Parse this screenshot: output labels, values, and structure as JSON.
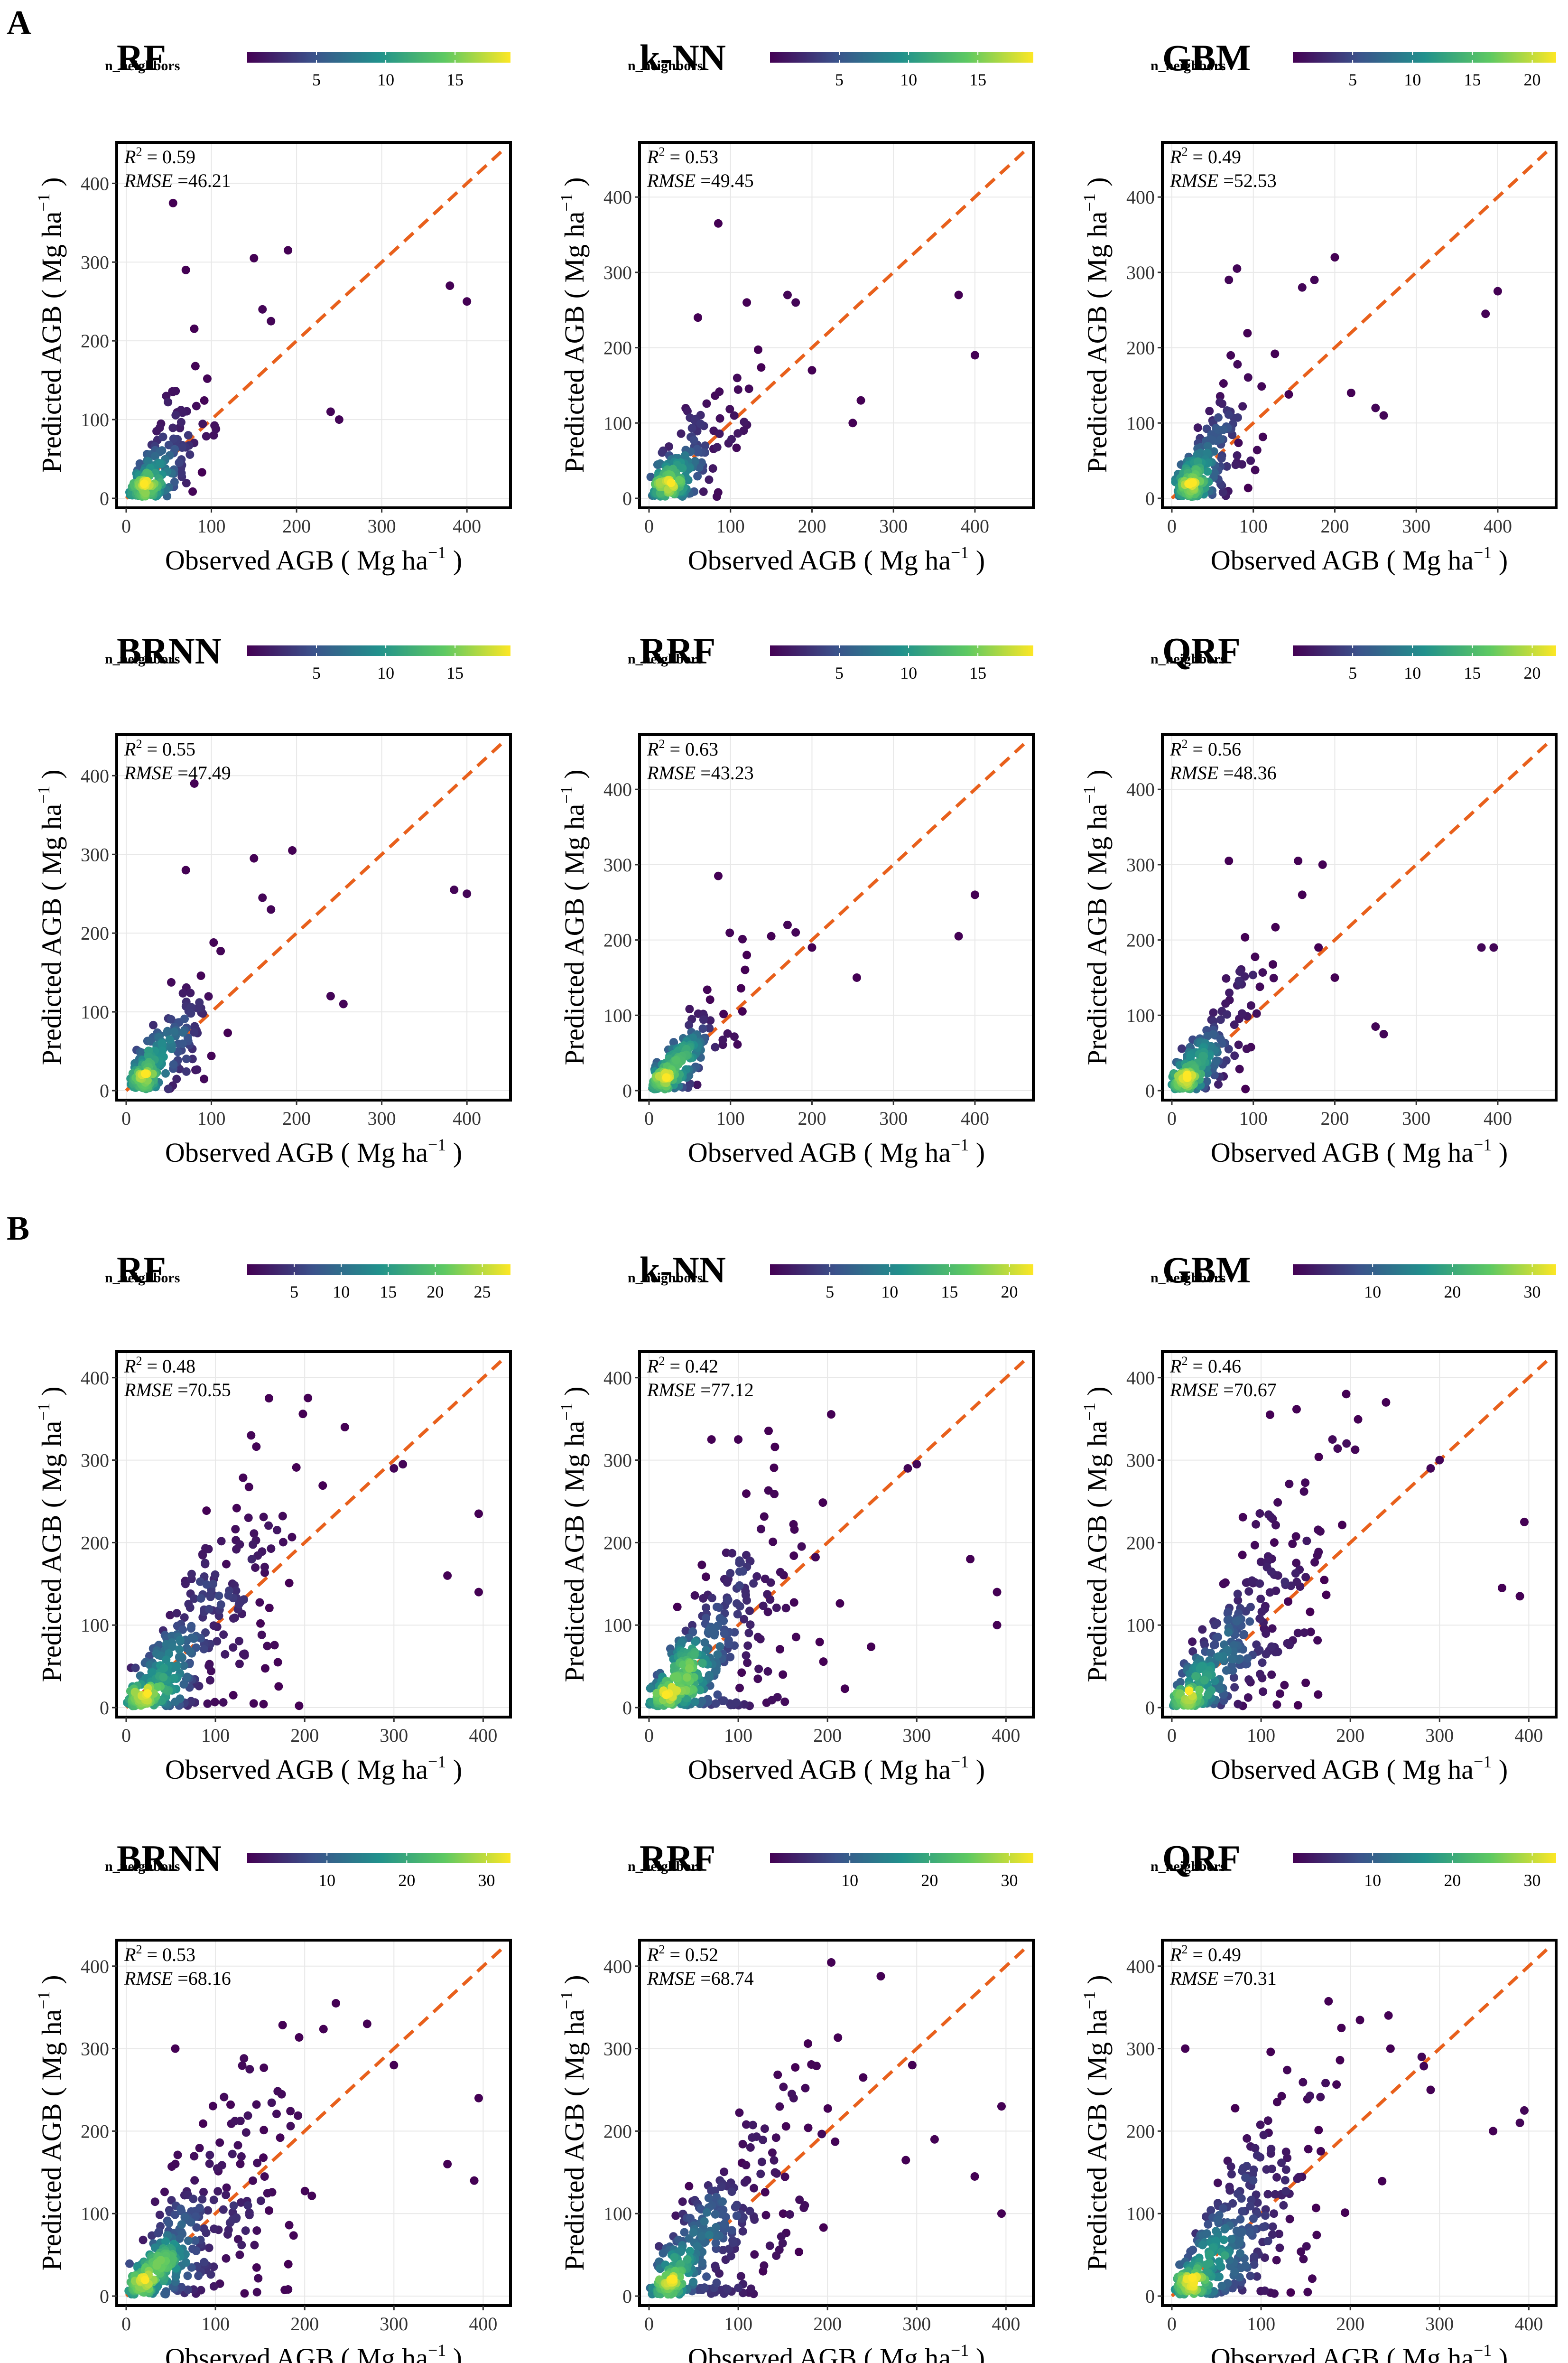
{
  "figure": {
    "section_labels": [
      "A",
      "B"
    ],
    "x_axis_label": "Observed AGB ( Mg ha",
    "y_axis_label": "Predicted AGB ( Mg ha",
    "unit_superscript": "−1",
    "unit_close": ")",
    "legend_title": "n_neighbors",
    "r2_symbol": "R",
    "r2_exponent": "2",
    "r2_prefix": " = ",
    "rmse_symbol": "RMSE",
    "rmse_prefix": " =",
    "line_color": "#e8601c",
    "colormap": [
      "#440154",
      "#3b528b",
      "#21918c",
      "#5ec962",
      "#fde725"
    ]
  },
  "chart_data": [
    {
      "section": "A",
      "type": "scatter",
      "title": "RF",
      "r2": "0.59",
      "rmse": "46.21",
      "xlim": [
        0,
        440
      ],
      "ylim": [
        0,
        440
      ],
      "xticks": [
        0,
        100,
        200,
        300,
        400
      ],
      "yticks": [
        0,
        100,
        200,
        300,
        400
      ],
      "legend_ticks": [
        5,
        10,
        15
      ],
      "legend_max": 19,
      "n_points": 180,
      "spread": 0.35,
      "seed": 11,
      "outliers": [
        [
          55,
          375
        ],
        [
          70,
          290
        ],
        [
          150,
          305
        ],
        [
          160,
          240
        ],
        [
          170,
          225
        ],
        [
          190,
          315
        ],
        [
          380,
          270
        ],
        [
          400,
          250
        ],
        [
          240,
          110
        ],
        [
          250,
          100
        ]
      ]
    },
    {
      "section": "A",
      "type": "scatter",
      "title": "k-NN",
      "r2": "0.53",
      "rmse": "49.45",
      "xlim": [
        0,
        460
      ],
      "ylim": [
        0,
        460
      ],
      "xticks": [
        0,
        100,
        200,
        300,
        400
      ],
      "yticks": [
        0,
        100,
        200,
        300,
        400
      ],
      "legend_ticks": [
        5,
        10,
        15
      ],
      "legend_max": 19,
      "n_points": 180,
      "spread": 0.38,
      "seed": 23,
      "outliers": [
        [
          85,
          365
        ],
        [
          60,
          240
        ],
        [
          120,
          260
        ],
        [
          170,
          270
        ],
        [
          180,
          260
        ],
        [
          200,
          170
        ],
        [
          380,
          270
        ],
        [
          400,
          190
        ],
        [
          250,
          100
        ],
        [
          260,
          130
        ]
      ]
    },
    {
      "section": "A",
      "type": "scatter",
      "title": "GBM",
      "r2": "0.49",
      "rmse": "52.53",
      "xlim": [
        0,
        460
      ],
      "ylim": [
        0,
        460
      ],
      "xticks": [
        0,
        100,
        200,
        300,
        400
      ],
      "yticks": [
        0,
        100,
        200,
        300,
        400
      ],
      "legend_ticks": [
        5,
        10,
        15,
        20
      ],
      "legend_max": 22,
      "n_points": 180,
      "spread": 0.4,
      "seed": 37,
      "outliers": [
        [
          70,
          290
        ],
        [
          80,
          305
        ],
        [
          160,
          280
        ],
        [
          175,
          290
        ],
        [
          200,
          320
        ],
        [
          385,
          245
        ],
        [
          400,
          275
        ],
        [
          220,
          140
        ],
        [
          250,
          120
        ],
        [
          260,
          110
        ]
      ]
    },
    {
      "section": "A",
      "type": "scatter",
      "title": "BRNN",
      "r2": "0.55",
      "rmse": "47.49",
      "xlim": [
        0,
        440
      ],
      "ylim": [
        0,
        440
      ],
      "xticks": [
        0,
        100,
        200,
        300,
        400
      ],
      "yticks": [
        0,
        100,
        200,
        300,
        400
      ],
      "legend_ticks": [
        5,
        10,
        15
      ],
      "legend_max": 19,
      "n_points": 180,
      "spread": 0.36,
      "seed": 41,
      "outliers": [
        [
          70,
          280
        ],
        [
          150,
          295
        ],
        [
          160,
          245
        ],
        [
          170,
          230
        ],
        [
          195,
          305
        ],
        [
          385,
          255
        ],
        [
          400,
          250
        ],
        [
          240,
          120
        ],
        [
          255,
          110
        ],
        [
          80,
          390
        ]
      ]
    },
    {
      "section": "A",
      "type": "scatter",
      "title": "RRF",
      "r2": "0.63",
      "rmse": "43.23",
      "xlim": [
        0,
        460
      ],
      "ylim": [
        0,
        460
      ],
      "xticks": [
        0,
        100,
        200,
        300,
        400
      ],
      "yticks": [
        0,
        100,
        200,
        300,
        400
      ],
      "legend_ticks": [
        5,
        10,
        15
      ],
      "legend_max": 19,
      "n_points": 180,
      "spread": 0.3,
      "seed": 53,
      "outliers": [
        [
          85,
          285
        ],
        [
          150,
          205
        ],
        [
          170,
          220
        ],
        [
          200,
          190
        ],
        [
          255,
          150
        ],
        [
          380,
          205
        ],
        [
          400,
          260
        ],
        [
          120,
          180
        ],
        [
          180,
          210
        ]
      ]
    },
    {
      "section": "A",
      "type": "scatter",
      "title": "QRF",
      "r2": "0.56",
      "rmse": "48.36",
      "xlim": [
        0,
        460
      ],
      "ylim": [
        0,
        460
      ],
      "xticks": [
        0,
        100,
        200,
        300,
        400
      ],
      "yticks": [
        0,
        100,
        200,
        300,
        400
      ],
      "legend_ticks": [
        5,
        10,
        15,
        20
      ],
      "legend_max": 22,
      "n_points": 180,
      "spread": 0.36,
      "seed": 67,
      "outliers": [
        [
          70,
          305
        ],
        [
          155,
          305
        ],
        [
          160,
          260
        ],
        [
          185,
          300
        ],
        [
          200,
          150
        ],
        [
          380,
          190
        ],
        [
          395,
          190
        ],
        [
          250,
          85
        ],
        [
          260,
          75
        ],
        [
          180,
          190
        ]
      ]
    },
    {
      "section": "B",
      "type": "scatter",
      "title": "RF",
      "r2": "0.48",
      "rmse": "70.55",
      "xlim": [
        0,
        420
      ],
      "ylim": [
        0,
        420
      ],
      "xticks": [
        0,
        100,
        200,
        300,
        400
      ],
      "yticks": [
        0,
        100,
        200,
        300,
        400
      ],
      "legend_ticks": [
        5,
        10,
        15,
        20,
        25
      ],
      "legend_max": 28,
      "n_points": 320,
      "spread": 0.5,
      "seed": 79,
      "outliers": [
        [
          160,
          375
        ],
        [
          140,
          330
        ],
        [
          245,
          340
        ],
        [
          300,
          290
        ],
        [
          310,
          295
        ],
        [
          395,
          235
        ],
        [
          395,
          140
        ],
        [
          360,
          160
        ],
        [
          120,
          15
        ]
      ]
    },
    {
      "section": "B",
      "type": "scatter",
      "title": "k-NN",
      "r2": "0.42",
      "rmse": "77.12",
      "xlim": [
        0,
        420
      ],
      "ylim": [
        0,
        420
      ],
      "xticks": [
        0,
        100,
        200,
        300,
        400
      ],
      "yticks": [
        0,
        100,
        200,
        300,
        400
      ],
      "legend_ticks": [
        5,
        10,
        15,
        20
      ],
      "legend_max": 22,
      "n_points": 320,
      "spread": 0.55,
      "seed": 83,
      "outliers": [
        [
          70,
          325
        ],
        [
          100,
          325
        ],
        [
          290,
          290
        ],
        [
          300,
          295
        ],
        [
          360,
          180
        ],
        [
          390,
          140
        ],
        [
          390,
          100
        ],
        [
          150,
          40
        ]
      ]
    },
    {
      "section": "B",
      "type": "scatter",
      "title": "GBM",
      "r2": "0.46",
      "rmse": "70.67",
      "xlim": [
        0,
        420
      ],
      "ylim": [
        0,
        420
      ],
      "xticks": [
        0,
        100,
        200,
        300,
        400
      ],
      "yticks": [
        0,
        100,
        200,
        300,
        400
      ],
      "legend_ticks": [
        10,
        20,
        30
      ],
      "legend_max": 33,
      "n_points": 320,
      "spread": 0.5,
      "seed": 97,
      "outliers": [
        [
          110,
          355
        ],
        [
          180,
          325
        ],
        [
          240,
          370
        ],
        [
          290,
          290
        ],
        [
          300,
          300
        ],
        [
          395,
          225
        ],
        [
          390,
          135
        ],
        [
          370,
          145
        ],
        [
          150,
          30
        ]
      ]
    },
    {
      "section": "B",
      "type": "scatter",
      "title": "BRNN",
      "r2": "0.53",
      "rmse": "68.16",
      "xlim": [
        0,
        420
      ],
      "ylim": [
        0,
        420
      ],
      "xticks": [
        0,
        100,
        200,
        300,
        400
      ],
      "yticks": [
        0,
        100,
        200,
        300,
        400
      ],
      "legend_ticks": [
        10,
        20,
        30
      ],
      "legend_max": 33,
      "n_points": 320,
      "spread": 0.48,
      "seed": 101,
      "outliers": [
        [
          55,
          300
        ],
        [
          235,
          355
        ],
        [
          270,
          330
        ],
        [
          300,
          280
        ],
        [
          360,
          160
        ],
        [
          395,
          240
        ],
        [
          390,
          140
        ],
        [
          105,
          15
        ]
      ]
    },
    {
      "section": "B",
      "type": "scatter",
      "title": "RRF",
      "r2": "0.52",
      "rmse": "68.74",
      "xlim": [
        0,
        420
      ],
      "ylim": [
        0,
        420
      ],
      "xticks": [
        0,
        100,
        200,
        300,
        400
      ],
      "yticks": [
        0,
        100,
        200,
        300,
        400
      ],
      "legend_ticks": [
        10,
        20,
        30
      ],
      "legend_max": 33,
      "n_points": 320,
      "spread": 0.48,
      "seed": 113,
      "outliers": [
        [
          160,
          245
        ],
        [
          240,
          265
        ],
        [
          295,
          280
        ],
        [
          320,
          190
        ],
        [
          365,
          145
        ],
        [
          395,
          230
        ],
        [
          395,
          100
        ],
        [
          100,
          10
        ]
      ]
    },
    {
      "section": "B",
      "type": "scatter",
      "title": "QRF",
      "r2": "0.49",
      "rmse": "70.31",
      "xlim": [
        0,
        420
      ],
      "ylim": [
        0,
        420
      ],
      "xticks": [
        0,
        100,
        200,
        300,
        400
      ],
      "yticks": [
        0,
        100,
        200,
        300,
        400
      ],
      "legend_ticks": [
        10,
        20,
        30
      ],
      "legend_max": 33,
      "n_points": 320,
      "spread": 0.5,
      "seed": 127,
      "outliers": [
        [
          15,
          300
        ],
        [
          190,
          325
        ],
        [
          245,
          300
        ],
        [
          280,
          290
        ],
        [
          290,
          250
        ],
        [
          395,
          225
        ],
        [
          390,
          210
        ],
        [
          360,
          200
        ],
        [
          70,
          15
        ]
      ]
    }
  ]
}
